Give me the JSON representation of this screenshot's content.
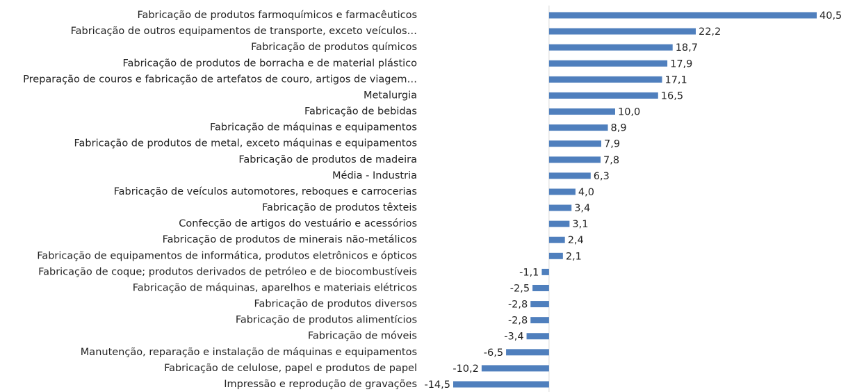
{
  "chart_data": {
    "type": "hbar",
    "color": "#4f7fbd",
    "categories": [
      "Fabricação de produtos farmoquímicos e farmacêuticos",
      "Fabricação de outros equipamentos de transporte, exceto veículos…",
      "Fabricação de produtos químicos",
      "Fabricação de produtos de borracha e de material plástico",
      "Preparação de couros e fabricação de artefatos de couro, artigos de viagem…",
      "Metalurgia",
      "Fabricação de bebidas",
      "Fabricação de máquinas e equipamentos",
      "Fabricação de produtos de metal, exceto máquinas e equipamentos",
      "Fabricação de produtos de madeira",
      "Média - Industria",
      "Fabricação de veículos automotores, reboques e carrocerias",
      "Fabricação de produtos têxteis",
      "Confecção de artigos do vestuário e acessórios",
      "Fabricação de produtos de minerais não-metálicos",
      "Fabricação de equipamentos de informática, produtos eletrônicos e ópticos",
      "Fabricação de coque; produtos derivados de petróleo e de biocombustíveis",
      "Fabricação de máquinas, aparelhos e materiais elétricos",
      "Fabricação de produtos diversos",
      "Fabricação de produtos alimentícios",
      "Fabricação de móveis",
      "Manutenção, reparação e instalação de máquinas e equipamentos",
      "Fabricação de celulose, papel e produtos de papel",
      "Impressão e reprodução de gravações"
    ],
    "values": [
      40.5,
      22.2,
      18.7,
      17.9,
      17.1,
      16.5,
      10.0,
      8.9,
      7.9,
      7.8,
      6.3,
      4.0,
      3.4,
      3.1,
      2.4,
      2.1,
      -1.1,
      -2.5,
      -2.8,
      -2.8,
      -3.4,
      -6.5,
      -10.2,
      -14.5
    ],
    "value_labels": [
      "40,5",
      "22,2",
      "18,7",
      "17,9",
      "17,1",
      "16,5",
      "10,0",
      "8,9",
      "7,9",
      "7,8",
      "6,3",
      "4,0",
      "3,4",
      "3,1",
      "2,4",
      "2,1",
      "-1,1",
      "-2,5",
      "-2,8",
      "-2,8",
      "-3,4",
      "-6,5",
      "-10,2",
      "-14,5"
    ]
  }
}
